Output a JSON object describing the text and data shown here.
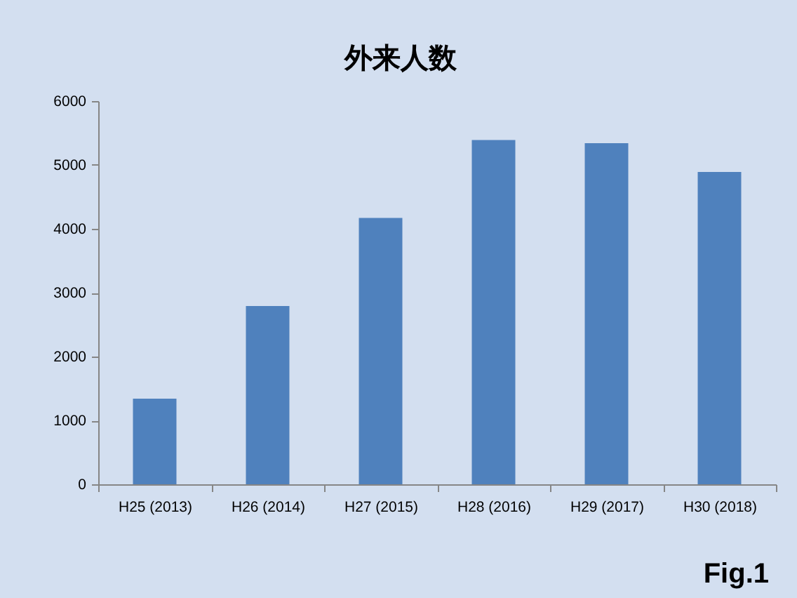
{
  "chart_data": {
    "type": "bar",
    "title": "外来人数",
    "categories": [
      "H25 (2013)",
      "H26 (2014)",
      "H27 (2015)",
      "H28 (2016)",
      "H29 (2017)",
      "H30 (2018)"
    ],
    "values": [
      1340,
      2790,
      4170,
      5390,
      5340,
      4890
    ],
    "color": "#4f81bd",
    "ylim": [
      0,
      6000
    ],
    "yticks": [
      0,
      1000,
      2000,
      3000,
      4000,
      5000,
      6000
    ],
    "grid": false,
    "annotations": [
      "Fig.1"
    ]
  }
}
